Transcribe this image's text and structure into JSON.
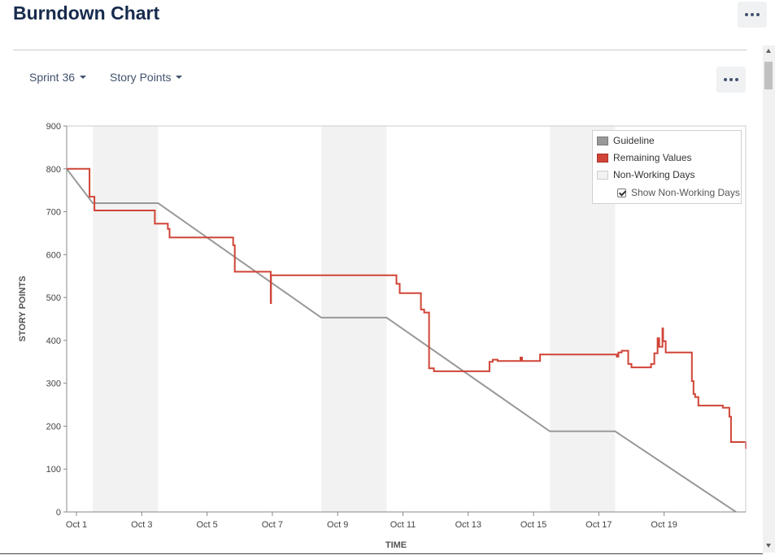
{
  "page": {
    "title": "Burndown Chart"
  },
  "controls": {
    "sprint": "Sprint 36",
    "metric": "Story Points"
  },
  "legend": {
    "guideline": "Guideline",
    "remaining": "Remaining Values",
    "non_working": "Non-Working Days",
    "show_non_working": "Show Non-Working Days",
    "show_non_working_checked": true
  },
  "icons": {
    "more": "more-horizontal-icon",
    "dropdown": "caret-down-icon"
  },
  "colors": {
    "guideline": "#999999",
    "remaining": "#d04437",
    "non_working": "#f2f2f2",
    "title": "#172b4d"
  },
  "chart_data": {
    "type": "line",
    "title": "",
    "xlabel": "TIME",
    "ylabel": "STORY POINTS",
    "ylim": [
      0,
      900
    ],
    "yticks": [
      0,
      100,
      200,
      300,
      400,
      500,
      600,
      700,
      800,
      900
    ],
    "xticks": [
      "Oct 1",
      "Oct 3",
      "Oct 5",
      "Oct 7",
      "Oct 9",
      "Oct 11",
      "Oct 13",
      "Oct 15",
      "Oct 17",
      "Oct 19"
    ],
    "xlim_days": [
      -0.3,
      20.5
    ],
    "non_working_days": [
      [
        0.5,
        2.5
      ],
      [
        7.5,
        9.5
      ],
      [
        14.5,
        16.5
      ]
    ],
    "series": [
      {
        "name": "Guideline",
        "step": false,
        "points": [
          [
            -0.3,
            800
          ],
          [
            0.5,
            720
          ],
          [
            2.5,
            720
          ],
          [
            7.5,
            453
          ],
          [
            9.5,
            453
          ],
          [
            14.5,
            188
          ],
          [
            16.5,
            188
          ],
          [
            20.2,
            0
          ]
        ]
      },
      {
        "name": "Remaining Values",
        "step": true,
        "points": [
          [
            -0.3,
            800
          ],
          [
            0.4,
            800
          ],
          [
            0.4,
            735
          ],
          [
            0.55,
            735
          ],
          [
            0.55,
            703
          ],
          [
            2.4,
            703
          ],
          [
            2.4,
            672
          ],
          [
            2.8,
            672
          ],
          [
            2.8,
            660
          ],
          [
            2.85,
            660
          ],
          [
            2.85,
            640
          ],
          [
            4.8,
            640
          ],
          [
            4.8,
            622
          ],
          [
            4.85,
            622
          ],
          [
            4.85,
            560
          ],
          [
            5.95,
            560
          ],
          [
            5.95,
            487
          ],
          [
            5.96,
            487
          ],
          [
            5.96,
            552
          ],
          [
            9.8,
            552
          ],
          [
            9.8,
            532
          ],
          [
            9.9,
            532
          ],
          [
            9.9,
            510
          ],
          [
            10.55,
            510
          ],
          [
            10.55,
            472
          ],
          [
            10.65,
            472
          ],
          [
            10.65,
            465
          ],
          [
            10.8,
            465
          ],
          [
            10.8,
            335
          ],
          [
            10.95,
            335
          ],
          [
            10.95,
            328
          ],
          [
            12.65,
            328
          ],
          [
            12.65,
            350
          ],
          [
            12.75,
            350
          ],
          [
            12.75,
            355
          ],
          [
            12.9,
            355
          ],
          [
            12.9,
            352
          ],
          [
            13.6,
            352
          ],
          [
            13.6,
            360
          ],
          [
            13.65,
            360
          ],
          [
            13.65,
            352
          ],
          [
            14.2,
            352
          ],
          [
            14.2,
            367
          ],
          [
            16.55,
            367
          ],
          [
            16.55,
            362
          ],
          [
            16.6,
            362
          ],
          [
            16.6,
            372
          ],
          [
            16.7,
            372
          ],
          [
            16.7,
            376
          ],
          [
            16.9,
            376
          ],
          [
            16.9,
            345
          ],
          [
            17.0,
            345
          ],
          [
            17.0,
            337
          ],
          [
            17.6,
            337
          ],
          [
            17.6,
            345
          ],
          [
            17.7,
            345
          ],
          [
            17.7,
            370
          ],
          [
            17.8,
            370
          ],
          [
            17.8,
            405
          ],
          [
            17.85,
            405
          ],
          [
            17.85,
            385
          ],
          [
            17.95,
            385
          ],
          [
            17.95,
            428
          ],
          [
            17.97,
            428
          ],
          [
            17.97,
            398
          ],
          [
            18.05,
            398
          ],
          [
            18.05,
            372
          ],
          [
            18.85,
            372
          ],
          [
            18.85,
            305
          ],
          [
            18.9,
            305
          ],
          [
            18.9,
            275
          ],
          [
            18.95,
            275
          ],
          [
            18.95,
            268
          ],
          [
            19.05,
            268
          ],
          [
            19.05,
            248
          ],
          [
            19.8,
            248
          ],
          [
            19.8,
            243
          ],
          [
            20.0,
            243
          ],
          [
            20.0,
            222
          ],
          [
            20.05,
            222
          ],
          [
            20.05,
            163
          ],
          [
            20.5,
            163
          ],
          [
            20.5,
            147
          ]
        ]
      }
    ]
  }
}
